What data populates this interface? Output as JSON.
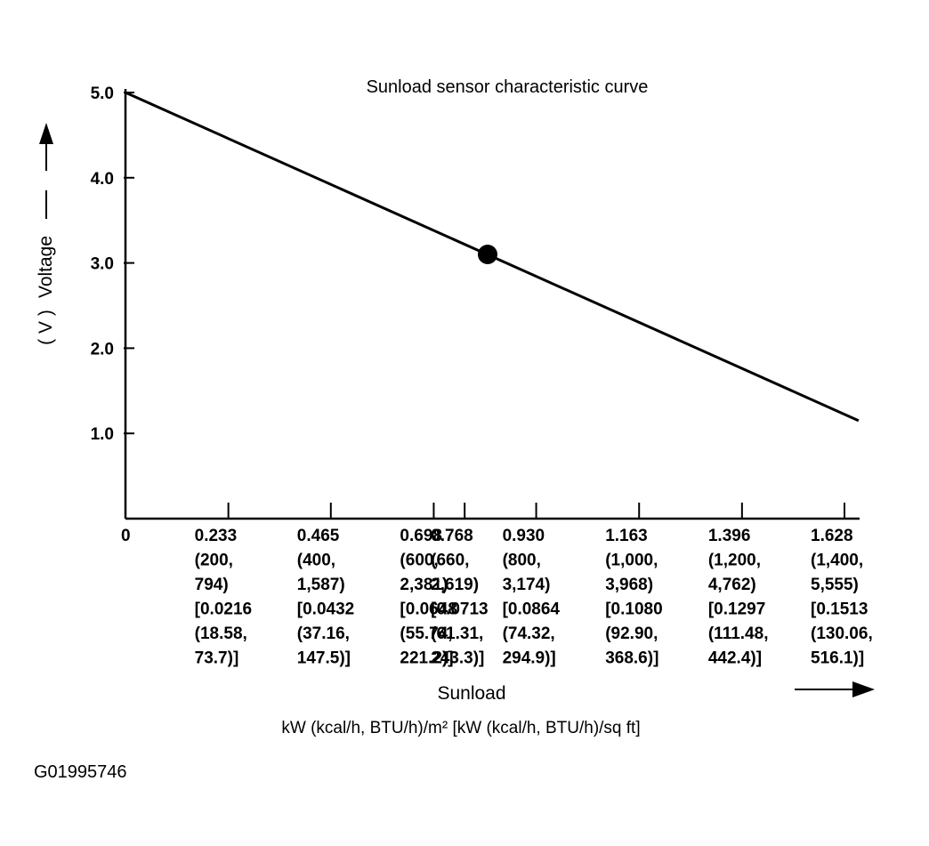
{
  "chart_data": {
    "type": "line",
    "title": "Sunload sensor characteristic curve",
    "ylabel": "Voltage",
    "yunit": "( V )",
    "xlabel": "Sunload",
    "xunits": "kW (kcal/h, BTU/h)/m²  [kW (kcal/h, BTU/h)/sq ft]",
    "ylim": [
      0,
      5.0
    ],
    "xlim": [
      0,
      1.628
    ],
    "yticks": [
      "1.0",
      "2.0",
      "3.0",
      "4.0",
      "5.0"
    ],
    "xticks": [
      {
        "value": 0,
        "lines": [
          "0"
        ]
      },
      {
        "value": 0.233,
        "lines": [
          "0.233",
          "(200,",
          "794)",
          "[0.0216",
          "(18.58,",
          "73.7)]"
        ]
      },
      {
        "value": 0.465,
        "lines": [
          "0.465",
          "(400,",
          "1,587)",
          "[0.0432",
          "(37.16,",
          "147.5)]"
        ]
      },
      {
        "value": 0.698,
        "lines": [
          "0.698",
          "(600,",
          "2,381)",
          "[0.0648",
          "(55.74,",
          "221.2)]"
        ]
      },
      {
        "value": 0.768,
        "lines": [
          "0.768",
          "(660,",
          "2,619)",
          "[0.0713",
          "(61.31,",
          "243.3)]"
        ]
      },
      {
        "value": 0.93,
        "lines": [
          "0.930",
          "(800,",
          "3,174)",
          "[0.0864",
          "(74.32,",
          "294.9)]"
        ]
      },
      {
        "value": 1.163,
        "lines": [
          "1.163",
          "(1,000,",
          "3,968)",
          "[0.1080",
          "(92.90,",
          "368.6)]"
        ]
      },
      {
        "value": 1.396,
        "lines": [
          "1.396",
          "(1,200,",
          "4,762)",
          "[0.1297",
          "(111.48,",
          "442.4)]"
        ]
      },
      {
        "value": 1.628,
        "lines": [
          "1.628",
          "(1,400,",
          "5,555)",
          "[0.1513",
          "(130.06,",
          "516.1)]"
        ]
      }
    ],
    "series": [
      {
        "x": [
          0,
          1.66
        ],
        "y": [
          5.0,
          1.15
        ]
      }
    ],
    "points": [
      {
        "x": 0.82,
        "y": 3.1
      }
    ],
    "grid": false,
    "legend": "none"
  },
  "figure_id": "G01995746"
}
